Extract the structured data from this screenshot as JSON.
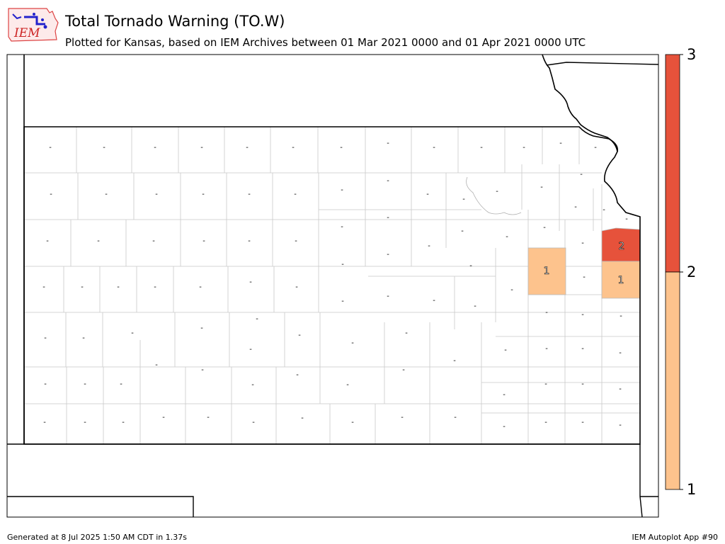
{
  "header": {
    "logo_text": "IEM",
    "title": "Total Tornado Warning (TO.W)",
    "subtitle": "Plotted for Kansas, based on IEM Archives  between 01 Mar 2021 0000 and 01 Apr 2021 0000 UTC"
  },
  "legend": {
    "ticks": [
      "1",
      "2",
      "3"
    ],
    "colors": {
      "low": "#fdc38d",
      "high": "#e6523b"
    }
  },
  "counties": {
    "labeled": [
      {
        "label": "2",
        "color": "#e6523b"
      },
      {
        "label": "1",
        "color": "#fdc38d"
      },
      {
        "label": "1",
        "color": "#fdc38d"
      }
    ],
    "zero_marker": "-"
  },
  "footer": {
    "generated": "Generated at 8 Jul 2025 1:50 AM CDT in 1.37s",
    "app": "IEM Autoplot App #90"
  }
}
